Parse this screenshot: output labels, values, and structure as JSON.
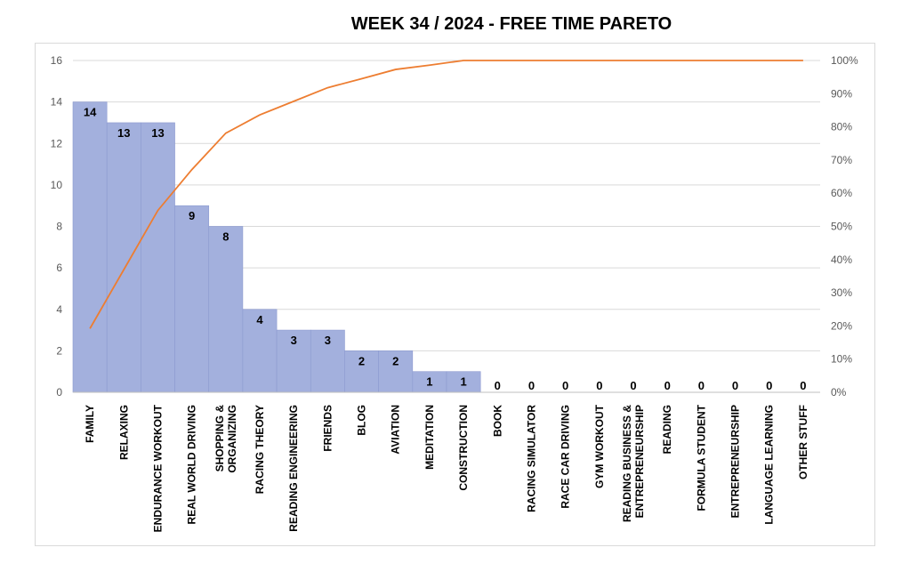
{
  "chart_data": {
    "type": "bar",
    "title": "WEEK 34  / 2024  - FREE TIME PARETO",
    "categories": [
      "FAMILY",
      "RELAXING",
      "ENDURANCE WORKOUT",
      "REAL WORLD DRIVING",
      "SHOPPING & ORGANIZING",
      "RACING THEORY",
      "READING ENGINEERING",
      "FRIENDS",
      "BLOG",
      "AVIATION",
      "MEDITATION",
      "CONSTRUCTION",
      "BOOK",
      "RACING SIMULATOR",
      "RACE CAR DRIVING",
      "GYM WORKOUT",
      "READING BUSINESS & ENTREPRENEURSHIP",
      "READING",
      "FORMULA STUDENT",
      "ENTREPRENEURSHIP",
      "LANGUAGE LEARNING",
      "OTHER STUFF"
    ],
    "category_lines": [
      [
        "FAMILY"
      ],
      [
        "RELAXING"
      ],
      [
        "ENDURANCE WORKOUT"
      ],
      [
        "REAL WORLD DRIVING"
      ],
      [
        "SHOPPING &",
        "ORGANIZING"
      ],
      [
        "RACING THEORY"
      ],
      [
        "READING ENGINEERING"
      ],
      [
        "FRIENDS"
      ],
      [
        "BLOG"
      ],
      [
        "AVIATION"
      ],
      [
        "MEDITATION"
      ],
      [
        "CONSTRUCTION"
      ],
      [
        "BOOK"
      ],
      [
        "RACING SIMULATOR"
      ],
      [
        "RACE CAR DRIVING"
      ],
      [
        "GYM WORKOUT"
      ],
      [
        "READING BUSINESS &",
        "ENTREPRENEURSHIP"
      ],
      [
        "READING"
      ],
      [
        "FORMULA STUDENT"
      ],
      [
        "ENTREPRENEURSHIP"
      ],
      [
        "LANGUAGE LEARNING"
      ],
      [
        "OTHER STUFF"
      ]
    ],
    "values": [
      14,
      13,
      13,
      9,
      8,
      4,
      3,
      3,
      2,
      2,
      1,
      1,
      0,
      0,
      0,
      0,
      0,
      0,
      0,
      0,
      0,
      0
    ],
    "cumulative_percent": [
      19.2,
      37.0,
      54.8,
      67.1,
      78.1,
      83.6,
      87.7,
      91.8,
      94.5,
      97.3,
      98.6,
      100,
      100,
      100,
      100,
      100,
      100,
      100,
      100,
      100,
      100,
      100
    ],
    "ylim": [
      0,
      16
    ],
    "yticks": [
      0,
      2,
      4,
      6,
      8,
      10,
      12,
      14,
      16
    ],
    "y2lim": [
      0,
      100
    ],
    "y2ticks": [
      "0%",
      "10%",
      "20%",
      "30%",
      "40%",
      "50%",
      "60%",
      "70%",
      "80%",
      "90%",
      "100%"
    ],
    "grid": true,
    "legend": "none",
    "colors": {
      "bar": "#a3b0dd",
      "bar_stroke": "#8d9bd0",
      "line": "#ed7d31",
      "grid": "#d9d9d9"
    }
  }
}
